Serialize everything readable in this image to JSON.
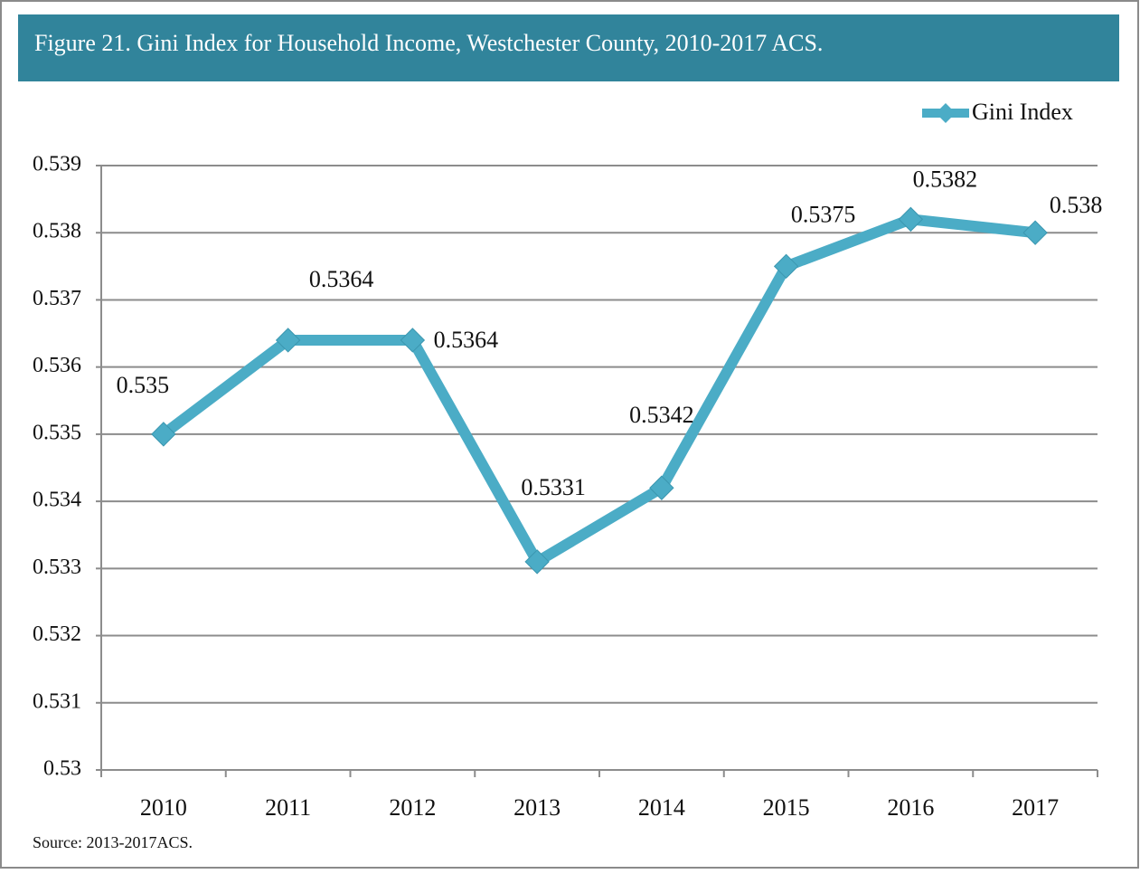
{
  "chart_data": {
    "type": "line",
    "title": "Figure 21.  Gini Index for Household Income, Westchester County, 2010-2017 ACS.",
    "source": "Source: 2013-2017ACS.",
    "categories": [
      "2010",
      "2011",
      "2012",
      "2013",
      "2014",
      "2015",
      "2016",
      "2017"
    ],
    "series": [
      {
        "name": "Gini Index",
        "color": "#4bacc6",
        "values": [
          0.535,
          0.5364,
          0.5364,
          0.5331,
          0.5342,
          0.5375,
          0.5382,
          0.538
        ]
      }
    ],
    "ylim": [
      0.53,
      0.539
    ],
    "yticks": [
      0.53,
      0.531,
      0.532,
      0.533,
      0.534,
      0.535,
      0.536,
      0.537,
      0.538,
      0.539
    ],
    "grid": true,
    "legend": "top-right",
    "data_labels": true
  }
}
